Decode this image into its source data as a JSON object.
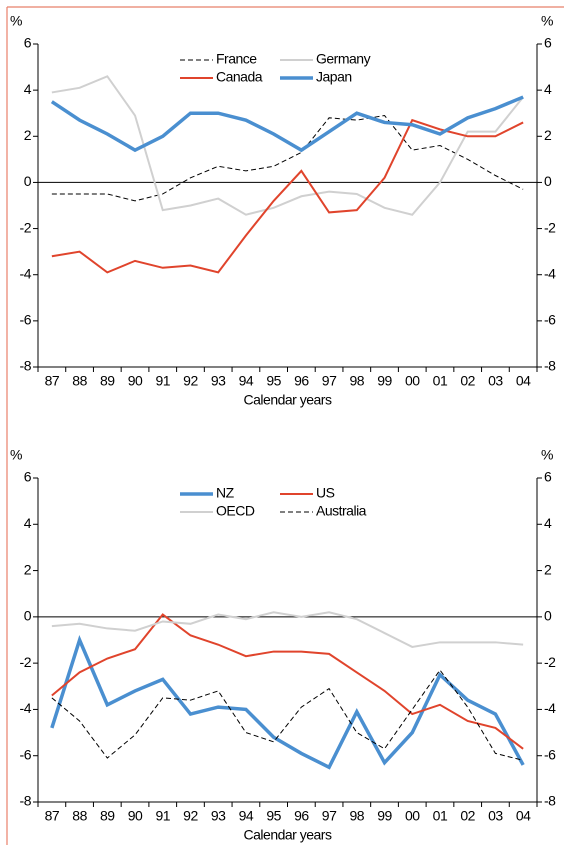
{
  "chart_data": [
    {
      "type": "line",
      "ylabel": "%",
      "xlabel": "Calendar years",
      "categories": [
        "87",
        "88",
        "89",
        "90",
        "91",
        "92",
        "93",
        "94",
        "95",
        "96",
        "97",
        "98",
        "99",
        "00",
        "01",
        "02",
        "03",
        "04"
      ],
      "ylim": [
        -8,
        6
      ],
      "yticks": [
        -8,
        -6,
        -4,
        -2,
        0,
        2,
        4,
        6
      ],
      "series": [
        {
          "name": "France",
          "color": "#000000",
          "style": "dashed",
          "values": [
            -0.5,
            -0.5,
            -0.5,
            -0.8,
            -0.5,
            0.2,
            0.7,
            0.5,
            0.7,
            1.3,
            2.8,
            2.7,
            2.9,
            1.4,
            1.6,
            1.0,
            0.3,
            -0.3
          ]
        },
        {
          "name": "Germany",
          "color": "#d0d0d0",
          "style": "solid",
          "values": [
            3.9,
            4.1,
            4.6,
            2.9,
            -1.2,
            -1.0,
            -0.7,
            -1.4,
            -1.1,
            -0.6,
            -0.4,
            -0.5,
            -1.1,
            -1.4,
            0.0,
            2.2,
            2.2,
            3.7
          ]
        },
        {
          "name": "Canada",
          "color": "#e0442c",
          "style": "solid",
          "values": [
            -3.2,
            -3.0,
            -3.9,
            -3.4,
            -3.7,
            -3.6,
            -3.9,
            -2.3,
            -0.8,
            0.5,
            -1.3,
            -1.2,
            0.2,
            2.7,
            2.3,
            2.0,
            2.0,
            2.6
          ]
        },
        {
          "name": "Japan",
          "color": "#4a8fd0",
          "style": "thick",
          "values": [
            3.5,
            2.7,
            2.1,
            1.4,
            2.0,
            3.0,
            3.0,
            2.7,
            2.1,
            1.4,
            2.2,
            3.0,
            2.6,
            2.5,
            2.1,
            2.8,
            3.2,
            3.7
          ]
        }
      ]
    },
    {
      "type": "line",
      "ylabel": "%",
      "xlabel": "Calendar years",
      "categories": [
        "87",
        "88",
        "89",
        "90",
        "91",
        "92",
        "93",
        "94",
        "95",
        "96",
        "97",
        "98",
        "99",
        "00",
        "01",
        "02",
        "03",
        "04"
      ],
      "ylim": [
        -8,
        6
      ],
      "yticks": [
        -8,
        -6,
        -4,
        -2,
        0,
        2,
        4,
        6
      ],
      "series": [
        {
          "name": "NZ",
          "color": "#4a8fd0",
          "style": "thick",
          "values": [
            -4.8,
            -1.0,
            -3.8,
            -3.2,
            -2.7,
            -4.2,
            -3.9,
            -4.0,
            -5.2,
            -5.9,
            -6.5,
            -4.1,
            -6.3,
            -5.0,
            -2.5,
            -3.6,
            -4.2,
            -6.4
          ]
        },
        {
          "name": "US",
          "color": "#e0442c",
          "style": "solid",
          "values": [
            -3.4,
            -2.4,
            -1.8,
            -1.4,
            0.1,
            -0.8,
            -1.2,
            -1.7,
            -1.5,
            -1.5,
            -1.6,
            -2.4,
            -3.2,
            -4.2,
            -3.8,
            -4.5,
            -4.8,
            -5.7
          ]
        },
        {
          "name": "OECD",
          "color": "#d0d0d0",
          "style": "solid",
          "values": [
            -0.4,
            -0.3,
            -0.5,
            -0.6,
            -0.2,
            -0.3,
            0.1,
            -0.1,
            0.2,
            0.0,
            0.2,
            -0.1,
            -0.7,
            -1.3,
            -1.1,
            -1.1,
            -1.1,
            -1.2
          ]
        },
        {
          "name": "Australia",
          "color": "#000000",
          "style": "dashed",
          "values": [
            -3.5,
            -4.5,
            -6.1,
            -5.1,
            -3.5,
            -3.6,
            -3.2,
            -5.0,
            -5.4,
            -3.9,
            -3.1,
            -5.0,
            -5.7,
            -4.0,
            -2.3,
            -3.9,
            -5.9,
            -6.2
          ]
        }
      ]
    }
  ]
}
